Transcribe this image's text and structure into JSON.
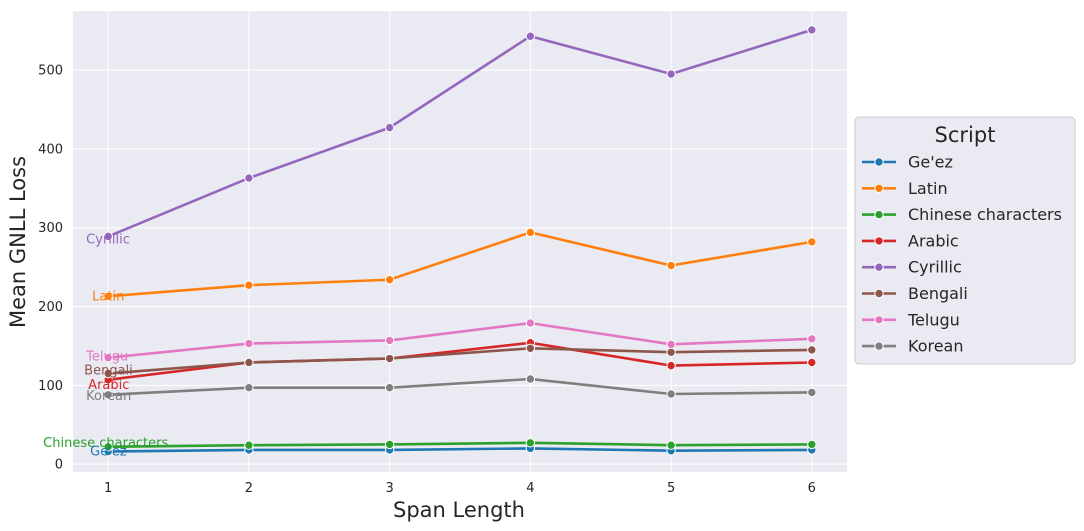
{
  "chart_data": {
    "type": "line",
    "x": [
      1,
      2,
      3,
      4,
      5,
      6
    ],
    "xlabel": "Span Length",
    "ylabel": "Mean GNLL Loss",
    "xlim": [
      0.75,
      6.25
    ],
    "ylim": [
      -10,
      575
    ],
    "xticks": [
      "1",
      "2",
      "3",
      "4",
      "5",
      "6"
    ],
    "yticks": [
      "0",
      "100",
      "200",
      "300",
      "400",
      "500"
    ],
    "grid": true,
    "legend": {
      "title": "Script",
      "placement": "center-right, outside plot"
    },
    "series": [
      {
        "name": "Ge'ez",
        "color": "#1f77b4",
        "values": [
          16,
          18,
          18,
          20,
          17,
          18
        ]
      },
      {
        "name": "Latin",
        "color": "#ff7f0e",
        "values": [
          213,
          227,
          234,
          294,
          252,
          282
        ]
      },
      {
        "name": "Chinese characters",
        "color": "#2ca02c",
        "values": [
          22,
          24,
          25,
          27,
          24,
          25
        ]
      },
      {
        "name": "Arabic",
        "color": "#d62728",
        "values": [
          107,
          129,
          134,
          154,
          125,
          129
        ]
      },
      {
        "name": "Cyrillic",
        "color": "#9467bd",
        "values": [
          289,
          363,
          427,
          543,
          495,
          551
        ]
      },
      {
        "name": "Bengali",
        "color": "#8c564b",
        "values": [
          115,
          129,
          134,
          147,
          142,
          145
        ]
      },
      {
        "name": "Telugu",
        "color": "#e377c2",
        "values": [
          135,
          153,
          157,
          179,
          152,
          159
        ]
      },
      {
        "name": "Korean",
        "color": "#7f7f7f",
        "values": [
          88,
          97,
          97,
          108,
          89,
          91
        ]
      }
    ],
    "annotations": [
      {
        "text": "Cyrillic",
        "series": "Cyrillic"
      },
      {
        "text": "Latin",
        "series": "Latin"
      },
      {
        "text": "Telugu",
        "series": "Telugu"
      },
      {
        "text": "Bengali",
        "series": "Bengali"
      },
      {
        "text": "Arabic",
        "series": "Arabic"
      },
      {
        "text": "Korean",
        "series": "Korean"
      },
      {
        "text": "Chinese characters",
        "series": "Chinese characters"
      },
      {
        "text": "Ge'ez",
        "series": "Ge'ez"
      }
    ]
  }
}
